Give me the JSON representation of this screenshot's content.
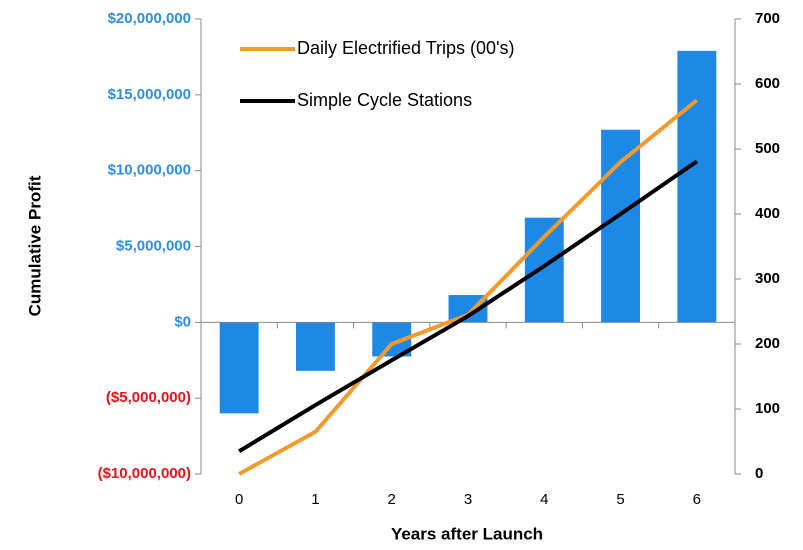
{
  "chart_data": {
    "type": "bar-line",
    "x_label": "Years after Launch",
    "y_label": "Cumulative Profit",
    "categories": [
      "0",
      "1",
      "2",
      "3",
      "4",
      "5",
      "6"
    ],
    "series": [
      {
        "name": "Cumulative Profit",
        "type": "bar",
        "color": "#1e88e5",
        "values": [
          -6000000,
          -3200000,
          -2250000,
          1800000,
          6900000,
          12700000,
          17900000
        ]
      },
      {
        "name": "Daily Electrified Trips (00's)",
        "type": "line",
        "axis": "y2",
        "color": "#f39a2b",
        "values": [
          0,
          65,
          200,
          245,
          365,
          480,
          575
        ]
      },
      {
        "name": "Simple Cycle Stations",
        "type": "line",
        "axis": "y2",
        "color": "#000000",
        "values": [
          35,
          106,
          175,
          243,
          320,
          400,
          481
        ]
      }
    ],
    "ylim": [
      -10000000,
      20000000
    ],
    "yticks": [
      {
        "value": -10000000,
        "label": "($10,000,000)"
      },
      {
        "value": -5000000,
        "label": "($5,000,000)"
      },
      {
        "value": 0,
        "label": "$0"
      },
      {
        "value": 5000000,
        "label": "$5,000,000"
      },
      {
        "value": 10000000,
        "label": "$10,000,000"
      },
      {
        "value": 15000000,
        "label": "$15,000,000"
      },
      {
        "value": 20000000,
        "label": "$20,000,000"
      }
    ],
    "ytick_colors": {
      "positive": "#2e8fe0",
      "negative": "#e5141c"
    },
    "y2lim": [
      0,
      700
    ],
    "y2ticks": [
      0,
      100,
      200,
      300,
      400,
      500,
      600,
      700
    ],
    "legend": "top-left"
  }
}
